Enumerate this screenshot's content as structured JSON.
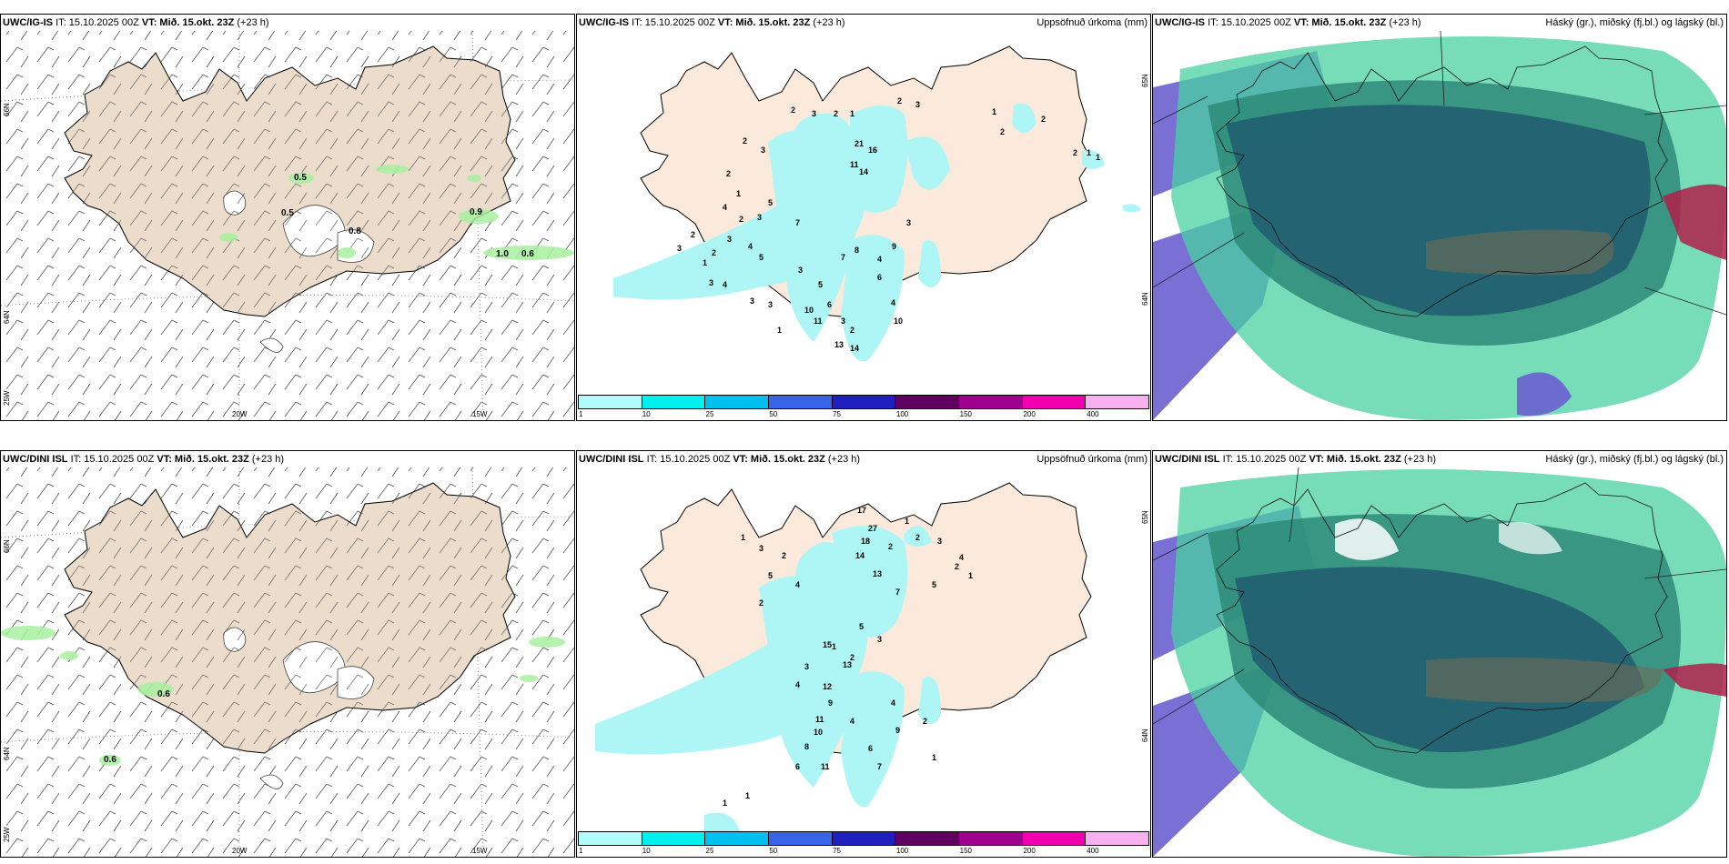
{
  "panels": {
    "p1": {
      "model": "UWC/IG-IS",
      "it": "IT: 15.10.2025 00Z",
      "vt": "VT: Mið. 15.okt. 23Z",
      "lead": "(+23 h)",
      "right_title": "",
      "lon_labels": [
        "20W",
        "15W"
      ],
      "lat_labels": [
        "66N",
        "64N",
        "25W"
      ],
      "wind_labels": [
        "0.5",
        "0.5",
        "0.8",
        "0.9",
        "1.0",
        "0.6"
      ]
    },
    "p2": {
      "model": "UWC/IG-IS",
      "it": "IT: 15.10.2025 00Z",
      "vt": "VT: Mið. 15.okt. 23Z",
      "lead": "(+23 h)",
      "right_title": "Uppsöfnuð úrkoma (mm)",
      "lat_labels": [
        "65N",
        "64N"
      ]
    },
    "p3": {
      "model": "UWC/IG-IS",
      "it": "IT: 15.10.2025 00Z",
      "vt": "VT: Mið. 15.okt. 23Z",
      "lead": "(+23 h)",
      "right_title": "Háský (gr.), miðský (fj.bl.) og lágský (bl.)"
    },
    "p4": {
      "model": "UWC/DINI ISL",
      "it": "IT: 15.10.2025 00Z",
      "vt": "VT: Mið. 15.okt. 23Z",
      "lead": "(+23 h)",
      "right_title": "",
      "lon_labels": [
        "20W",
        "15W"
      ],
      "lat_labels": [
        "66N",
        "64N",
        "25W"
      ],
      "wind_labels": [
        "0.6",
        "0.6"
      ]
    },
    "p5": {
      "model": "UWC/DINI ISL",
      "it": "IT: 15.10.2025 00Z",
      "vt": "VT: Mið. 15.okt. 23Z",
      "lead": "(+23 h)",
      "right_title": "Uppsöfnuð úrkoma (mm)",
      "lat_labels": [
        "65N",
        "64N"
      ]
    },
    "p6": {
      "model": "UWC/DINI ISL",
      "it": "IT: 15.10.2025 00Z",
      "vt": "VT: Mið. 15.okt. 23Z",
      "lead": "(+23 h)",
      "right_title": "Háský (gr.), miðský (fj.bl.) og lágský (bl.)"
    }
  },
  "precip_values_p2": [
    "2",
    "3",
    "2",
    "1",
    "2",
    "3",
    "21",
    "16",
    "11",
    "14",
    "2",
    "3",
    "2",
    "1",
    "4",
    "2",
    "3",
    "2",
    "3",
    "4",
    "5",
    "7",
    "5",
    "3",
    "2",
    "1",
    "3",
    "4",
    "3",
    "3",
    "1",
    "3",
    "5",
    "6",
    "3",
    "2",
    "10",
    "11",
    "13",
    "14",
    "7",
    "8",
    "4",
    "4",
    "3",
    "9",
    "6",
    "10",
    "1",
    "2",
    "2",
    "2",
    "1",
    "1"
  ],
  "precip_values_p5": [
    "1",
    "2",
    "3",
    "5",
    "4",
    "2",
    "17",
    "27",
    "18",
    "14",
    "13",
    "2",
    "1",
    "2",
    "3",
    "4",
    "5",
    "7",
    "5",
    "3",
    "2",
    "1",
    "3",
    "4",
    "15",
    "13",
    "12",
    "9",
    "11",
    "10",
    "8",
    "6",
    "11",
    "4",
    "6",
    "7",
    "9",
    "4",
    "2",
    "1",
    "1",
    "1",
    "2",
    "1"
  ],
  "colorbar": {
    "colors": [
      "#b3fbfb",
      "#00f0f0",
      "#00c0f0",
      "#3a64e8",
      "#2020c0",
      "#600060",
      "#a00090",
      "#f000b0",
      "#f8b0f0"
    ],
    "ticks": [
      "1",
      "10",
      "25",
      "50",
      "75",
      "100",
      "150",
      "200",
      "400"
    ]
  }
}
